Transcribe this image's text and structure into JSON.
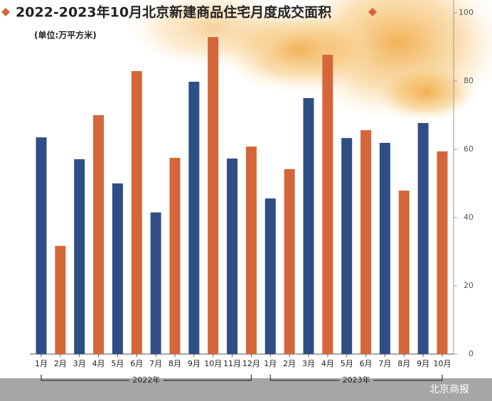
{
  "chart_data": {
    "type": "bar",
    "title": "2022-2023年10月北京新建商品住宅月度成交面积",
    "subtitle": "(单位:万平方米)",
    "source": "北京商报",
    "colors": [
      "#2f4e86",
      "#d4663a"
    ],
    "groups": [
      {
        "label": "2022年",
        "categories": [
          "1月",
          "2月",
          "3月",
          "4月",
          "5月",
          "6月",
          "7月",
          "8月",
          "9月",
          "10月",
          "11月",
          "12月"
        ],
        "values": [
          63.5,
          31.7,
          57.1,
          70,
          50,
          82.9,
          41.5,
          57.5,
          79.8,
          92.9,
          57.3,
          60.8
        ]
      },
      {
        "label": "2023年",
        "categories": [
          "1月",
          "2月",
          "3月",
          "4月",
          "5月",
          "6月",
          "7月",
          "8月",
          "9月",
          "10月"
        ],
        "values": [
          45.6,
          54.2,
          75,
          87.7,
          63.3,
          65.6,
          61.9,
          47.9,
          67.7,
          59.4
        ]
      }
    ],
    "ylim": [
      0,
      100
    ],
    "yticks": [
      0,
      20,
      40,
      60,
      80,
      100
    ]
  }
}
